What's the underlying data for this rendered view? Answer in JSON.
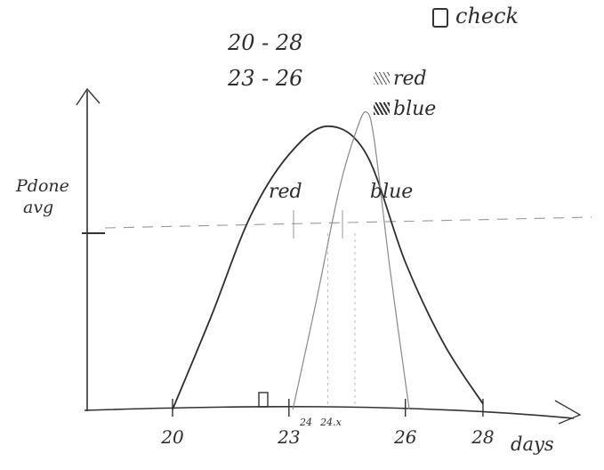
{
  "notes": {
    "check_label": "check",
    "range_1": "20 - 28",
    "range_2": "23 - 26",
    "legend_red": "red",
    "legend_blue": "blue"
  },
  "chart_data": {
    "type": "line",
    "xlabel": "days",
    "ylabel": "Pdone avg",
    "xlim": [
      17.8,
      30.5
    ],
    "ylim": [
      0,
      1.1
    ],
    "x_ticks": [
      20,
      23,
      26,
      28
    ],
    "minor_ticks": [
      "24",
      "24.x"
    ],
    "series": [
      {
        "name": "red",
        "points": [
          [
            20,
            0
          ],
          [
            21,
            0.33
          ],
          [
            22,
            0.68
          ],
          [
            23,
            0.9
          ],
          [
            24,
            1.0
          ],
          [
            25,
            0.9
          ],
          [
            26,
            0.52
          ],
          [
            27,
            0.23
          ],
          [
            28,
            0.02
          ]
        ]
      },
      {
        "name": "blue",
        "points": [
          [
            23.1,
            0
          ],
          [
            23.7,
            0.38
          ],
          [
            24.3,
            0.78
          ],
          [
            24.75,
            0.99
          ],
          [
            25.0,
            1.05
          ],
          [
            25.2,
            0.95
          ],
          [
            25.6,
            0.5
          ],
          [
            26.1,
            0
          ]
        ]
      }
    ]
  }
}
